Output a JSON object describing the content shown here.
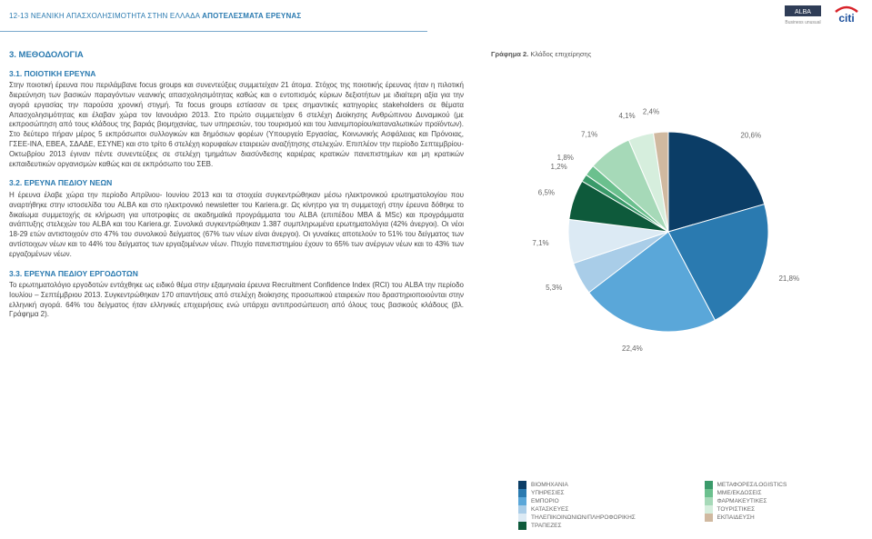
{
  "header": {
    "page_ref": "12-13",
    "title_light": "ΝΕΑΝΙΚΗ ΑΠΑΣΧΟΛΗΣΙΜΟΤΗΤΑ ΣΤΗΝ ΕΛΛΑΔΑ",
    "title_bold": "ΑΠΟΤΕΛΕΣΜΑΤΑ ΕΡΕΥΝΑΣ",
    "logo_alba": "ALBA",
    "logo_alba_sub": "Business unusual",
    "logo_citi": "citi"
  },
  "section": {
    "title": "3. ΜΕΘΟΔΟΛΟΓΙΑ",
    "s31_title": "3.1. ΠΟΙΟΤΙΚΗ ΕΡΕΥΝΑ",
    "s31_body": "Στην ποιοτική έρευνα που περιλάμβανε focus groups και συνεντεύξεις συμμετείχαν 21 άτομα. Στόχος της ποιοτικής έρευνας ήταν η πιλοτική διερεύνηση των βασικών παραγόντων νεανικής απασχολησιμότητας καθώς και ο εντοπισμός κύριων δεξιοτήτων με ιδιαίτερη αξία για την αγορά εργασίας την παρούσα χρονική στιγμή. Τα focus groups εστίασαν σε τρεις σημαντικές κατηγορίες stakeholders σε θέματα Απασχολησιμότητας και έλαβαν χώρα τον Ιανουάριο 2013. Στο πρώτο συμμετείχαν 6 στελέχη Διοίκησης Ανθρώπινου Δυναμικού (με εκπροσώπηση από τους κλάδους της βαριάς βιομηχανίας, των υπηρεσιών, του τουρισμού και του λιανεμπορίου/καταναλωτικών προϊόντων). Στο δεύτερο πήραν μέρος 5 εκπρόσωποι συλλογικών και δημόσιων φορέων (Υπουργείο Εργασίας, Κοινωνικής Ασφάλειας και Πρόνοιας, ΓΣΕΕ-ΙΝΑ, ΕΒΕΑ, ΣΔΑΔΕ, ΕΣΥΝΕ) και στο τρίτο 6 στελέχη κορυφαίων εταιρειών αναζήτησης στελεχών. Επιπλέον την περίοδο Σεπτεμβρίου-Οκτωβρίου 2013 έγιναν πέντε συνεντεύξεις σε στελέχη τμημάτων διασύνδεσης καριέρας κρατικών πανεπιστημίων και μη κρατικών εκπαιδευτικών οργανισμών καθώς και σε εκπρόσωπο του ΣΕΒ.",
    "s32_title": "3.2. ΕΡΕΥΝΑ ΠΕΔΙΟΥ ΝΕΩΝ",
    "s32_body": "Η έρευνα έλαβε χώρα την περίοδο Απρίλιου- Ιουνίου 2013 και τα στοιχεία συγκεντρώθηκαν μέσω ηλεκτρονικού ερωτηματολογίου που αναρτήθηκε στην ιστοσελίδα του ALBA και στο ηλεκτρονικό newsletter του Kariera.gr. Ως κίνητρο για τη συμμετοχή στην έρευνα δόθηκε το δικαίωμα συμμετοχής σε κλήρωση για υποτροφίες σε ακαδημαϊκά προγράμματα του ALBA (επιπέδου MBA & MSc) και προγράμματα ανάπτυξης στελεχών του ALBA και του Kariera.gr. Συνολικά συγκεντρώθηκαν 1.387 συμπληρωμένα ερωτηματολόγια (42% άνεργοι). Οι νέοι 18-29 ετών αντιστοιχούν στο 47% του συνολικού δείγματος (67% των νέων είναι άνεργοι). Οι γυναίκες αποτελούν το 51% του δείγματος των αντίστοιχων νέων και το 44% του δείγματος των εργαζομένων νέων. Πτυχίο πανεπιστημίου έχουν το 65% των ανέργων νέων και το 43% των εργαζομένων νέων.",
    "s33_title": "3.3. ΕΡΕΥΝΑ ΠΕΔΙΟΥ ΕΡΓΟΔΟΤΩΝ",
    "s33_body": "Το ερωτηματολόγιο εργοδοτών εντάχθηκε ως ειδικό θέμα στην εξαμηνιαία έρευνα Recruitment Confidence Index (RCI) του ALBA την περίοδο Ιουλίου – Σεπτέμβριου 2013. Συγκεντρώθηκαν 170 απαντήσεις από στελέχη διοίκησης προσωπικού εταιρειών που δραστηριοποιούνται στην ελληνική αγορά. 64% του δείγματος ήταν ελληνικές επιχειρήσεις ενώ υπάρχει αντιπροσώπευση από όλους τους βασικούς κλάδους (βλ. Γράφημα 2)."
  },
  "chart": {
    "title_bold": "Γράφημα 2.",
    "title_rest": "Κλάδος επιχείρησης",
    "type": "pie",
    "background_color": "#ffffff",
    "label_fontsize": 8,
    "label_color": "#666666",
    "slices": [
      {
        "label": "ΒΙΟΜΗΧΑΝΙΑ",
        "value": 20.6,
        "color": "#0b3d66",
        "text": "20,6%"
      },
      {
        "label": "ΥΠΗΡΕΣΙΕΣ",
        "value": 21.8,
        "color": "#2a7ab0",
        "text": "21,8%"
      },
      {
        "label": "ΕΜΠΟΡΙΟ",
        "value": 22.4,
        "color": "#5aa7d9",
        "text": "22,4%"
      },
      {
        "label": "ΚΑΤΑΣΚΕΥΕΣ",
        "value": 5.3,
        "color": "#a9cde8",
        "text": "5,3%"
      },
      {
        "label": "ΤΗΛΕΠΙΚΟΙΝΩΝΙΩΝ/ΠΛΗΡΟΦΟΡΙΚΗΣ",
        "value": 7.1,
        "color": "#dceaf4",
        "text": "7,1%"
      },
      {
        "label": "ΤΡΑΠΕΖΕΣ",
        "value": 6.5,
        "color": "#0e5a3b",
        "text": "6,5%"
      },
      {
        "label": "ΜΕΤΑΦΟΡΕΣ/LOGISTICS",
        "value": 1.2,
        "color": "#3a9a6a",
        "text": "1,2%"
      },
      {
        "label": "ΜΜΕ/ΕΚΔΟΣΕΙΣ",
        "value": 1.8,
        "color": "#6bc08e",
        "text": "1,8%"
      },
      {
        "label": "ΦΑΡΜΑΚΕΥΤΙΚΕΣ",
        "value": 7.1,
        "color": "#a6d9b8",
        "text": "7,1%"
      },
      {
        "label": "ΤΟΥΡΙΣΤΙΚΕΣ",
        "value": 4.1,
        "color": "#d6eedd",
        "text": "4,1%"
      },
      {
        "label": "ΕΚΠΑΙΔΕΥΣΗ",
        "value": 2.4,
        "color": "#d0b9a0",
        "text": "2,4%"
      }
    ],
    "legend_left": [
      {
        "label": "ΒΙΟΜΗΧΑΝΙΑ",
        "color": "#0b3d66"
      },
      {
        "label": "ΥΠΗΡΕΣΙΕΣ",
        "color": "#2a7ab0"
      },
      {
        "label": "ΕΜΠΟΡΙΟ",
        "color": "#5aa7d9"
      },
      {
        "label": "ΚΑΤΑΣΚΕΥΕΣ",
        "color": "#a9cde8"
      },
      {
        "label": "ΤΗΛΕΠΙΚΟΙΝΩΝΙΩΝ/ΠΛΗΡΟΦΟΡΙΚΗΣ",
        "color": "#dceaf4"
      },
      {
        "label": "ΤΡΑΠΕΖΕΣ",
        "color": "#0e5a3b"
      }
    ],
    "legend_right": [
      {
        "label": "ΜΕΤΑΦΟΡΕΣ/LOGISTICS",
        "color": "#3a9a6a"
      },
      {
        "label": "ΜΜΕ/ΕΚΔΟΣΕΙΣ",
        "color": "#6bc08e"
      },
      {
        "label": "ΦΑΡΜΑΚΕΥΤΙΚΕΣ",
        "color": "#a6d9b8"
      },
      {
        "label": "ΤΟΥΡΙΣΤΙΚΕΣ",
        "color": "#d6eedd"
      },
      {
        "label": "ΕΚΠΑΙΔΕΥΣΗ",
        "color": "#d0b9a0"
      }
    ]
  }
}
